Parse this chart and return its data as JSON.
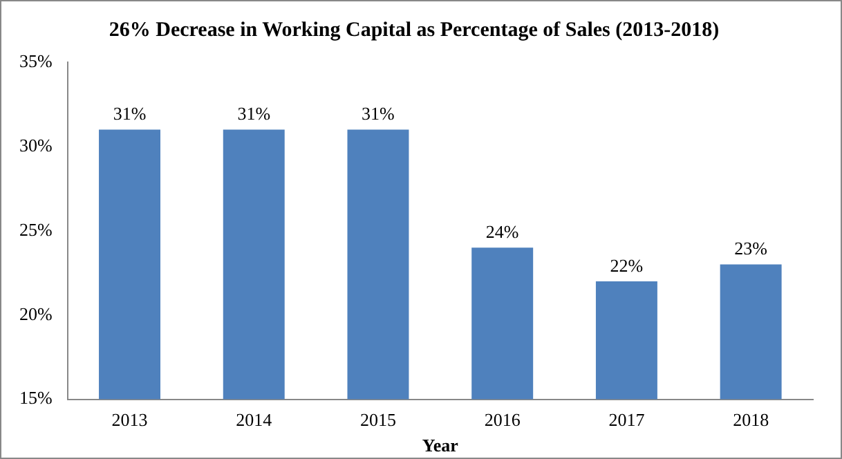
{
  "chart_data": {
    "type": "bar",
    "title": "26% Decrease in Working Capital as Percentage of Sales (2013-2018)",
    "xlabel": "Year",
    "categories": [
      "2013",
      "2014",
      "2015",
      "2016",
      "2017",
      "2018"
    ],
    "values": [
      31,
      31,
      31,
      24,
      22,
      23
    ],
    "value_labels": [
      "31%",
      "31%",
      "31%",
      "24%",
      "22%",
      "23%"
    ],
    "color": "#4f81bd",
    "ylim": [
      15,
      35
    ],
    "yticks": [
      {
        "value": 15,
        "label": "15%"
      },
      {
        "value": 20,
        "label": "20%"
      },
      {
        "value": 25,
        "label": "25%"
      },
      {
        "value": 30,
        "label": "30%"
      },
      {
        "value": 35,
        "label": "35%"
      }
    ],
    "grid": false,
    "legend": false
  }
}
